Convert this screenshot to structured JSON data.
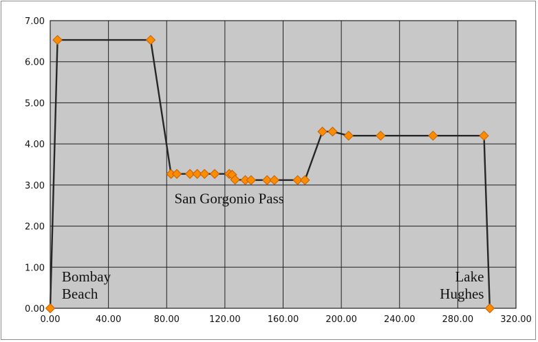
{
  "chart_data": {
    "type": "line",
    "title": "",
    "xlabel": "",
    "ylabel": "",
    "xlim": [
      0,
      320
    ],
    "ylim": [
      0,
      7
    ],
    "x_ticks": [
      "0.00",
      "40.00",
      "80.00",
      "120.00",
      "160.00",
      "200.00",
      "240.00",
      "280.00",
      "320.00"
    ],
    "y_ticks": [
      "0.00",
      "1.00",
      "2.00",
      "3.00",
      "4.00",
      "5.00",
      "6.00",
      "7.00"
    ],
    "grid": true,
    "legend": "none",
    "series": [
      {
        "color": "#ff8c00",
        "line_color": "#262626",
        "points": [
          [
            0,
            0
          ],
          [
            5,
            6.53
          ],
          [
            69,
            6.53
          ],
          [
            83,
            3.27
          ],
          [
            87,
            3.27
          ],
          [
            96,
            3.27
          ],
          [
            101,
            3.27
          ],
          [
            106,
            3.27
          ],
          [
            113,
            3.27
          ],
          [
            123,
            3.27
          ],
          [
            125,
            3.25
          ],
          [
            127,
            3.13
          ],
          [
            134,
            3.12
          ],
          [
            138,
            3.12
          ],
          [
            149,
            3.12
          ],
          [
            154,
            3.12
          ],
          [
            170,
            3.12
          ],
          [
            175,
            3.12
          ],
          [
            187,
            4.3
          ],
          [
            194,
            4.3
          ],
          [
            205,
            4.2
          ],
          [
            227,
            4.2
          ],
          [
            263,
            4.2
          ],
          [
            298,
            4.2
          ],
          [
            302,
            0
          ]
        ]
      }
    ],
    "annotations": [
      {
        "lines": [
          "Bombay",
          "Beach"
        ],
        "x": 8,
        "y": 0.65,
        "align": "start"
      },
      {
        "lines": [
          "San Gorgonio Pass"
        ],
        "x": 123,
        "y": 2.55,
        "align": "middle"
      },
      {
        "lines": [
          "Lake",
          "Hughes"
        ],
        "x": 298,
        "y": 0.65,
        "align": "end"
      }
    ]
  }
}
